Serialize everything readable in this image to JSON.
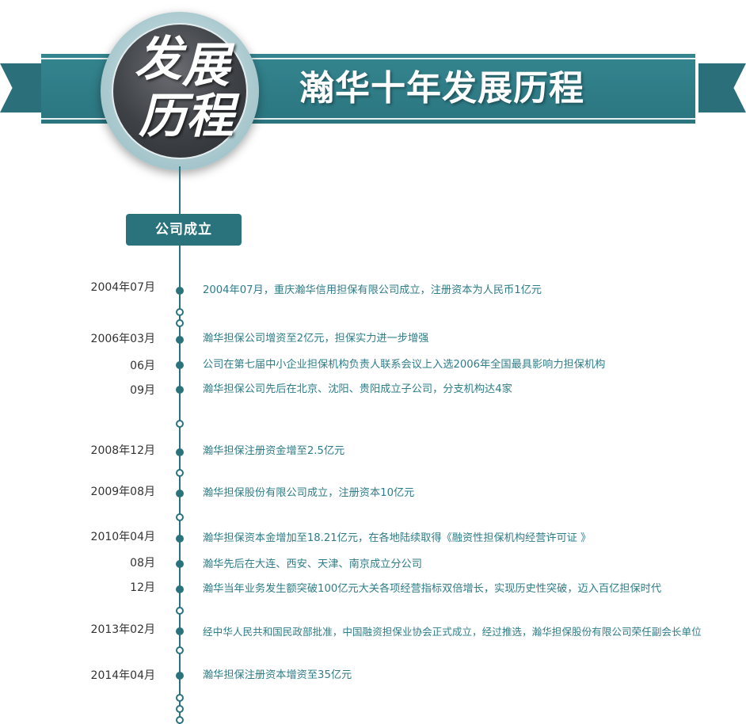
{
  "header": {
    "title": "瀚华十年发展历程",
    "emblem_chars": [
      "发",
      "展",
      "历",
      "程"
    ]
  },
  "colors": {
    "accent": "#2a737d",
    "ribbon": "#2b7580",
    "event_text": "#2f7d88",
    "date_text": "#333333"
  },
  "timeline": {
    "section": "公司成立",
    "events": [
      {
        "date": "2004年07月",
        "text": "2004年07月，重庆瀚华信用担保有限公司成立，注册资本为人民币1亿元"
      },
      {
        "date": "2006年03月",
        "text": "瀚华担保公司增资至2亿元，担保实力进一步增强"
      },
      {
        "date": "06月",
        "text": "公司在第七届中小企业担保机构负责人联系会议上入选2006年全国最具影响力担保机构"
      },
      {
        "date": "09月",
        "text": "瀚华担保公司先后在北京、沈阳、贵阳成立子公司，分支机构达4家"
      },
      {
        "date": "2008年12月",
        "text": "瀚华担保注册资金增至2.5亿元"
      },
      {
        "date": "2009年08月",
        "text": "瀚华担保股份有限公司成立，注册资本10亿元"
      },
      {
        "date": "2010年04月",
        "text": "瀚华担保资本金增加至18.21亿元，在各地陆续取得《融资性担保机构经营许可证 》"
      },
      {
        "date": "08月",
        "text": "瀚华先后在大连、西安、天津、南京成立分公司"
      },
      {
        "date": "12月",
        "text": "瀚华当年业务发生额突破100亿元大关各项经营指标双倍增长，实现历史性突破，迈入百亿担保时代"
      },
      {
        "date": "2013年02月",
        "text": "经中华人民共和国民政部批准，中国融资担保业协会正式成立，经过推选，瀚华担保股份有限公司荣任副会长单位"
      },
      {
        "date": "2014年04月",
        "text": "瀚华担保注册资本增资至35亿元"
      }
    ]
  }
}
